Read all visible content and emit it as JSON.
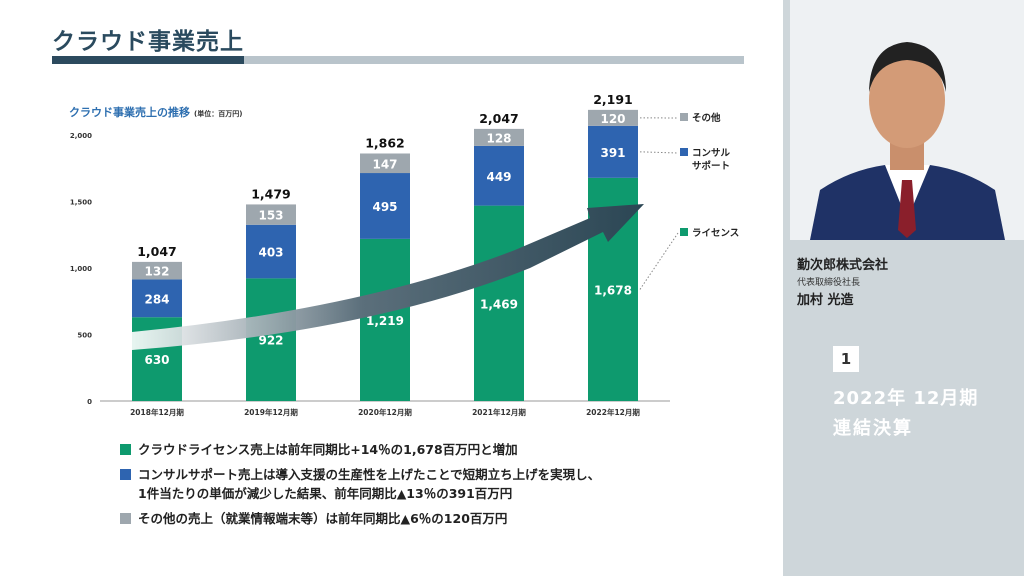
{
  "slide": {
    "title": "クラウド事業売上",
    "chart_heading": "クラウド事業売上の推移",
    "chart_unit": "(単位：百万円)"
  },
  "chart_data": {
    "type": "bar",
    "stacked": true,
    "categories": [
      "2018年12月期",
      "2019年12月期",
      "2020年12月期",
      "2021年12月期",
      "2022年12月期"
    ],
    "series": [
      {
        "name": "ライセンス",
        "values": [
          630,
          922,
          1219,
          1469,
          1678
        ],
        "color": "#0e9a6e"
      },
      {
        "name": "コンサルサポート",
        "values": [
          284,
          403,
          495,
          449,
          391
        ],
        "color": "#2e64b0"
      },
      {
        "name": "その他",
        "values": [
          132,
          153,
          147,
          128,
          120
        ],
        "color": "#9ea7ae"
      }
    ],
    "totals": [
      "1,047",
      "1,479",
      "1,862",
      "2,047",
      "2,191"
    ],
    "value_labels": [
      [
        "630",
        "922",
        "1,219",
        "1,469",
        "1,678"
      ],
      [
        "284",
        "403",
        "495",
        "449",
        "391"
      ],
      [
        "132",
        "153",
        "147",
        "128",
        "120"
      ]
    ],
    "legend_labels": [
      "その他",
      "コンサル\nサポート",
      "ライセンス"
    ],
    "yticks": [
      "0",
      "500",
      "1,000",
      "1,500",
      "2,000"
    ],
    "ylim": [
      0,
      2200
    ],
    "legend_position": "right"
  },
  "bullets": [
    {
      "text": "クラウドライセンス売上は前年同期比+14％の1,678百万円と増加",
      "color": "#0e9a6e"
    },
    {
      "text": "コンサルサポート売上は導入支援の生産性を上げたことで短期立ち上げを実現し、",
      "text2": "1件当たりの単価が減少した結果、前年同期比▲13％の391百万円",
      "color": "#2e64b0"
    },
    {
      "text": "その他の売上（就業情報端末等）は前年同期比▲6％の120百万円",
      "color": "#9ea7ae"
    }
  ],
  "speaker": {
    "company": "勤次郎株式会社",
    "role": "代表取締役社長",
    "name": "加村 光造"
  },
  "section": {
    "number": "1",
    "period": "2022年 12月期",
    "title": "連結決算"
  }
}
